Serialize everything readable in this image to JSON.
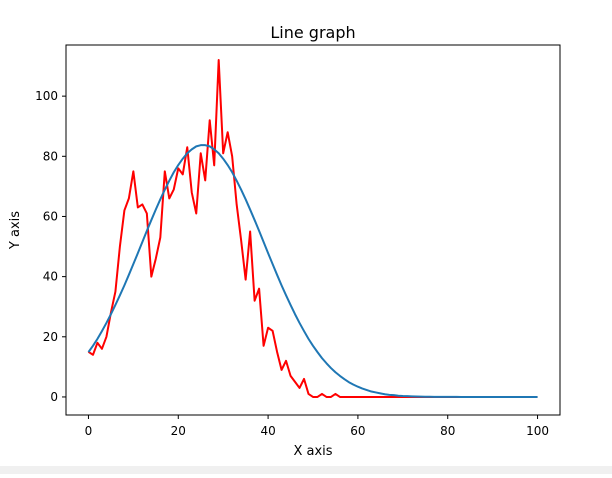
{
  "chart_data": {
    "type": "line",
    "title": "Line graph",
    "xlabel": "X axis",
    "ylabel": "Y axis",
    "xlim": [
      -5,
      105
    ],
    "ylim": [
      -6,
      117
    ],
    "grid": false,
    "x_ticks": [
      0,
      20,
      40,
      60,
      80,
      100
    ],
    "y_ticks": [
      0,
      20,
      40,
      60,
      80,
      100
    ],
    "series": [
      {
        "color": "#ff0000",
        "x": [
          0,
          1,
          2,
          3,
          4,
          5,
          6,
          7,
          8,
          9,
          10,
          11,
          12,
          13,
          14,
          15,
          16,
          17,
          18,
          19,
          20,
          21,
          22,
          23,
          24,
          25,
          26,
          27,
          28,
          29,
          30,
          31,
          32,
          33,
          34,
          35,
          36,
          37,
          38,
          39,
          40,
          41,
          42,
          43,
          44,
          45,
          46,
          47,
          48,
          49,
          50,
          51,
          52,
          53,
          54,
          55,
          56,
          57,
          58,
          59,
          60,
          61,
          62,
          63,
          64,
          65,
          66,
          67,
          68,
          69,
          70,
          71,
          72,
          73,
          74,
          75,
          76,
          77,
          78,
          79,
          80,
          81,
          82,
          83,
          84,
          85,
          86,
          87,
          88,
          89,
          90,
          91,
          92,
          93,
          94,
          95,
          96,
          97,
          98,
          99,
          100
        ],
        "y": [
          15,
          14,
          18,
          16,
          20,
          28,
          35,
          50,
          62,
          66,
          75,
          63,
          64,
          61,
          40,
          46,
          53,
          75,
          66,
          69,
          76,
          74,
          83,
          68,
          61,
          81,
          72,
          92,
          77,
          112,
          81,
          88,
          80,
          64,
          52,
          39,
          55,
          32,
          36,
          17,
          23,
          22,
          15,
          9,
          12,
          7,
          5,
          3,
          6,
          1,
          0,
          0,
          1,
          0,
          0,
          1,
          0,
          0,
          0,
          0,
          0,
          0,
          0,
          0,
          0,
          0,
          0,
          0,
          0,
          0,
          0,
          0,
          0,
          0,
          0,
          0,
          0,
          0,
          0,
          0,
          0,
          0,
          0,
          0,
          0,
          0,
          0,
          0,
          0,
          0,
          0,
          0,
          0,
          0,
          0,
          0,
          0,
          0,
          0,
          0,
          0
        ]
      },
      {
        "color": "#1f77b4",
        "x": [
          0,
          1,
          2,
          3,
          4,
          5,
          6,
          7,
          8,
          9,
          10,
          11,
          12,
          13,
          14,
          15,
          16,
          17,
          18,
          19,
          20,
          21,
          22,
          23,
          24,
          25,
          26,
          27,
          28,
          29,
          30,
          31,
          32,
          33,
          34,
          35,
          36,
          37,
          38,
          39,
          40,
          41,
          42,
          43,
          44,
          45,
          46,
          47,
          48,
          49,
          50,
          51,
          52,
          53,
          54,
          55,
          56,
          57,
          58,
          59,
          60,
          61,
          62,
          63,
          64,
          65,
          66,
          67,
          68,
          69,
          70,
          71,
          72,
          73,
          74,
          75,
          76,
          77,
          78,
          79,
          80,
          81,
          82,
          83,
          84,
          85,
          86,
          87,
          88,
          89,
          90,
          91,
          92,
          93,
          94,
          95,
          96,
          97,
          98,
          99,
          100
        ],
        "y": [
          14.9,
          17.0,
          19.3,
          21.9,
          24.6,
          27.5,
          30.6,
          33.8,
          37.1,
          40.6,
          44.2,
          47.8,
          51.5,
          55.2,
          58.8,
          62.3,
          65.7,
          68.9,
          71.9,
          74.7,
          77.1,
          79.2,
          81.0,
          82.3,
          83.3,
          83.7,
          83.7,
          83.3,
          82.3,
          81.0,
          79.2,
          77.1,
          74.7,
          71.9,
          68.9,
          65.7,
          62.3,
          58.8,
          55.2,
          51.5,
          47.8,
          44.2,
          40.6,
          37.1,
          33.8,
          30.6,
          27.5,
          24.6,
          21.9,
          19.3,
          17.0,
          14.9,
          12.9,
          11.2,
          9.6,
          8.2,
          7.0,
          5.9,
          4.9,
          4.1,
          3.4,
          2.8,
          2.3,
          1.8,
          1.5,
          1.2,
          0.9,
          0.7,
          0.6,
          0.4,
          0.3,
          0.26,
          0.2,
          0.15,
          0.11,
          0.08,
          0.06,
          0.04,
          0.03,
          0.02,
          0.015,
          0.01,
          0.008,
          0.005,
          0.004,
          0.003,
          0.002,
          0.001,
          0.001,
          0,
          0,
          0,
          0,
          0,
          0,
          0,
          0,
          0,
          0,
          0,
          0
        ]
      }
    ]
  }
}
